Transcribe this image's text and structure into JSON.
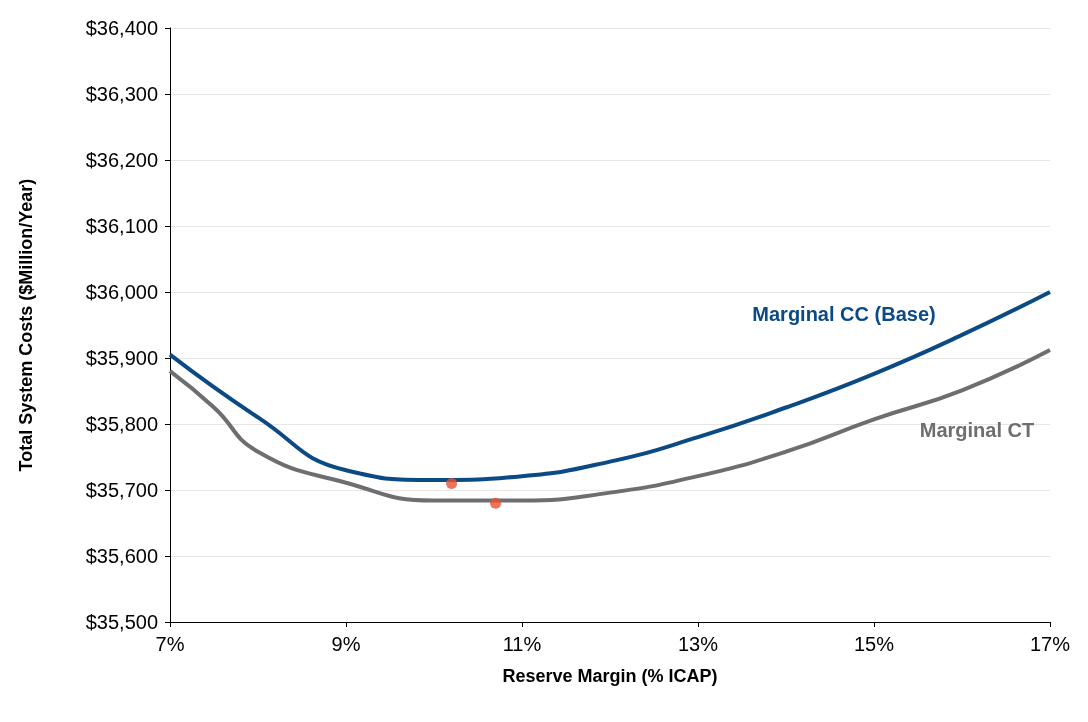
{
  "chart_data": {
    "type": "line",
    "xlabel": "Reserve Margin (% ICAP)",
    "ylabel": "Total System Costs ($Million/Year)",
    "xlim": [
      7,
      17
    ],
    "xticks": [
      {
        "value": 7,
        "label": "7%"
      },
      {
        "value": 9,
        "label": "9%"
      },
      {
        "value": 11,
        "label": "11%"
      },
      {
        "value": 13,
        "label": "13%"
      },
      {
        "value": 15,
        "label": "15%"
      },
      {
        "value": 17,
        "label": "17%"
      }
    ],
    "ylim": [
      35500,
      36400
    ],
    "yticks": [
      {
        "value": 35500,
        "label": "$35,500"
      },
      {
        "value": 35600,
        "label": "$35,600"
      },
      {
        "value": 35700,
        "label": "$35,700"
      },
      {
        "value": 35800,
        "label": "$35,800"
      },
      {
        "value": 35900,
        "label": "$35,900"
      },
      {
        "value": 36000,
        "label": "$36,000"
      },
      {
        "value": 36100,
        "label": "$36,100"
      },
      {
        "value": 36200,
        "label": "$36,200"
      },
      {
        "value": 36300,
        "label": "$36,300"
      },
      {
        "value": 36400,
        "label": "$36,400"
      }
    ],
    "grid": "y",
    "marker": "none",
    "line_style": "solid",
    "series": [
      {
        "name": "Marginal CC (Base)",
        "color": "#0b4a82",
        "x": [
          7,
          8,
          9,
          10,
          11,
          12,
          13,
          14,
          15,
          16,
          17
        ],
        "values": [
          35905,
          35810,
          35730,
          35715,
          35721,
          35743,
          35780,
          35825,
          35876,
          35935,
          36000
        ]
      },
      {
        "name": "Marginal CT",
        "color": "#6d6e71",
        "x": [
          7,
          7.5,
          8,
          9,
          10,
          11,
          12,
          13,
          14,
          15,
          16,
          17
        ],
        "values": [
          35880,
          35825,
          35758,
          35711,
          35684,
          35684,
          35696,
          35721,
          35758,
          35807,
          35851,
          35912
        ]
      },
      {
        "type": "scatter",
        "color": "#e8502f",
        "marker": "circle",
        "x": [
          10.2,
          10.7
        ],
        "values": [
          35710,
          35680
        ]
      }
    ]
  }
}
